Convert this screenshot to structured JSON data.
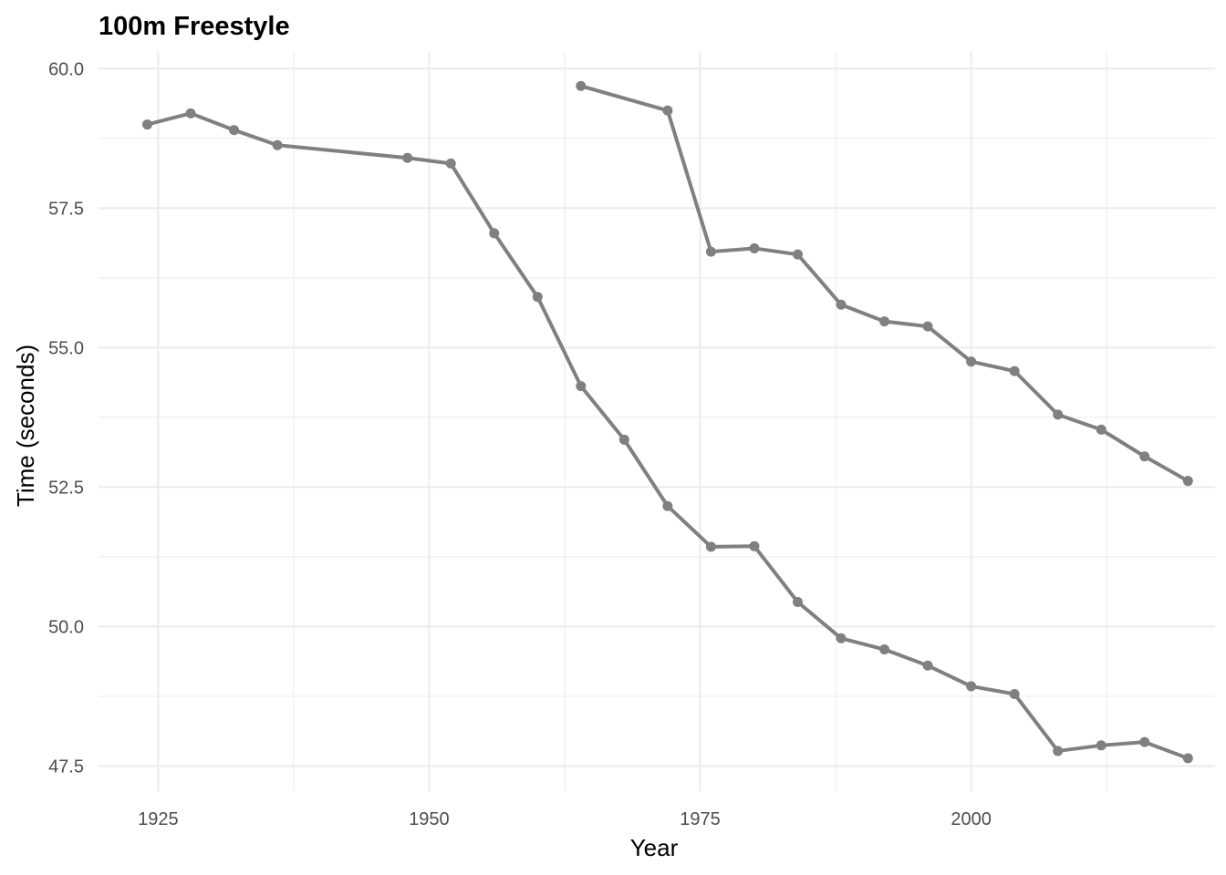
{
  "chart_data": {
    "type": "line",
    "title": "100m Freestyle",
    "xlabel": "Year",
    "ylabel": "Time (seconds)",
    "xlim": [
      1919.5,
      2022.5
    ],
    "ylim": [
      47.05,
      60.3
    ],
    "x_ticks": [
      1925,
      1950,
      1975,
      2000
    ],
    "x_tick_labels": [
      "1925",
      "1950",
      "1975",
      "2000"
    ],
    "x_minor_ticks": [
      1937.5,
      1962.5,
      1987.5,
      2012.5
    ],
    "y_ticks": [
      47.5,
      50,
      52.5,
      55,
      57.5,
      60
    ],
    "y_tick_labels": [
      "47.5",
      "50.0",
      "52.5",
      "55.0",
      "57.5",
      "60.0"
    ],
    "y_minor_ticks": [
      48.75,
      51.25,
      53.75,
      56.25,
      58.75
    ],
    "grid": true,
    "legend": "none",
    "line_color": "#808080",
    "grid_color": "#ebebeb",
    "series": [
      {
        "x": [
          1924,
          1928,
          1932,
          1936,
          1948,
          1952,
          1956,
          1960,
          1964,
          1968,
          1972,
          1976,
          1980,
          1984,
          1988,
          1992,
          1996,
          2000,
          2004,
          2008,
          2012,
          2016,
          2020
        ],
        "values": [
          59.0,
          59.2,
          58.9,
          58.63,
          58.4,
          58.3,
          57.05,
          55.91,
          54.31,
          53.35,
          52.16,
          51.43,
          51.44,
          50.44,
          49.79,
          49.59,
          49.3,
          48.93,
          48.79,
          47.77,
          47.87,
          47.93,
          47.64
        ]
      },
      {
        "x": [
          1964,
          1972,
          1976,
          1980,
          1984,
          1988,
          1992,
          1996,
          2000,
          2004,
          2008,
          2012,
          2016,
          2020
        ],
        "values": [
          59.69,
          59.25,
          56.72,
          56.78,
          56.67,
          55.77,
          55.47,
          55.38,
          54.75,
          54.58,
          53.8,
          53.53,
          53.05,
          52.61
        ]
      }
    ]
  }
}
